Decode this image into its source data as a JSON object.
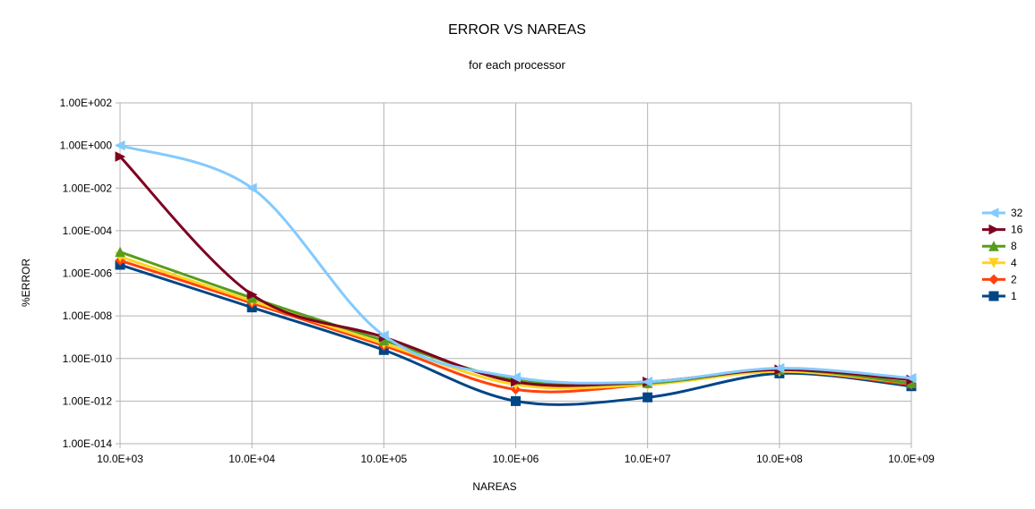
{
  "chart_data": {
    "type": "line",
    "title": "ERROR VS NAREAS",
    "subtitle": "for each processor",
    "xlabel": "NAREAS",
    "ylabel": "%ERROR",
    "x_scale": "log",
    "y_scale": "log",
    "x": [
      1000,
      10000,
      100000,
      1000000,
      10000000,
      100000000,
      1000000000
    ],
    "x_tick_labels": [
      "10.0E+03",
      "10.0E+04",
      "10.0E+05",
      "10.0E+06",
      "10.0E+07",
      "10.0E+08",
      "10.0E+09"
    ],
    "y_tick_labels": [
      "1.00E+002",
      "1.00E+000",
      "1.00E-002",
      "1.00E-004",
      "1.00E-006",
      "1.00E-008",
      "1.00E-010",
      "1.00E-012",
      "1.00E-014"
    ],
    "ylim": [
      1e-14,
      100
    ],
    "grid": true,
    "legend_position": "right",
    "series": [
      {
        "name": "32",
        "color": "#83caff",
        "marker": "triangle-left",
        "values": [
          1.0,
          0.01,
          1.2e-09,
          1.3e-11,
          8e-12,
          3.5e-11,
          1.2e-11
        ]
      },
      {
        "name": "16",
        "color": "#7e0021",
        "marker": "triangle-right",
        "values": [
          0.3,
          1e-07,
          1e-09,
          8e-12,
          8e-12,
          3e-11,
          1e-11
        ]
      },
      {
        "name": "8",
        "color": "#579d1c",
        "marker": "triangle-up",
        "values": [
          1e-05,
          7e-08,
          7e-10,
          1e-11,
          7e-12,
          3e-11,
          7e-12
        ]
      },
      {
        "name": "4",
        "color": "#ffd320",
        "marker": "triangle-down",
        "values": [
          6e-06,
          5e-08,
          5e-10,
          6e-12,
          6e-12,
          2.5e-11,
          7e-12
        ]
      },
      {
        "name": "2",
        "color": "#ff420e",
        "marker": "diamond",
        "values": [
          4e-06,
          4e-08,
          4e-10,
          3.5e-12,
          6e-12,
          2.5e-11,
          6e-12
        ]
      },
      {
        "name": "1",
        "color": "#004586",
        "marker": "square",
        "values": [
          2.5e-06,
          2.5e-08,
          2.5e-10,
          1e-12,
          1.5e-12,
          2e-11,
          5e-12
        ]
      }
    ]
  }
}
